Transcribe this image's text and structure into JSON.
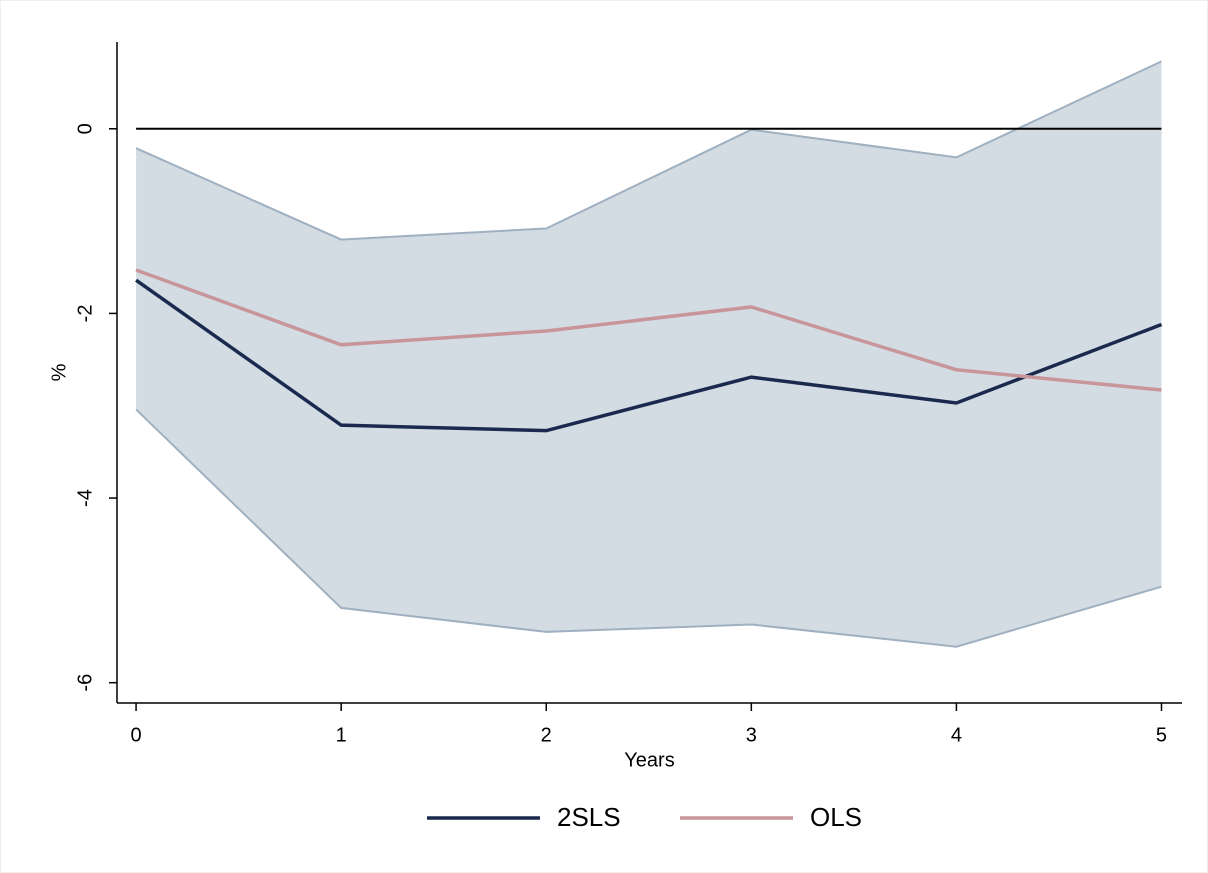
{
  "chart_data": {
    "type": "line",
    "x_label": "Years",
    "y_label": "%",
    "x": [
      0,
      1,
      2,
      3,
      4,
      5
    ],
    "series": [
      {
        "name": "2SLS",
        "color": "#1a2a4f",
        "values": [
          -1.64,
          -3.21,
          -3.27,
          -2.69,
          -2.97,
          -2.12
        ]
      },
      {
        "name": "OLS",
        "color": "#c8969a",
        "values": [
          -1.53,
          -2.34,
          -2.19,
          -1.93,
          -2.61,
          -2.83
        ]
      }
    ],
    "band": {
      "color": "#d3dbe3",
      "edge_color": "#9fb0c0",
      "upper": [
        -0.21,
        -1.2,
        -1.08,
        -0.01,
        -0.31,
        0.73
      ],
      "lower": [
        -3.04,
        -5.19,
        -5.45,
        -5.37,
        -5.61,
        -4.96
      ]
    },
    "hline": 0,
    "xlim": [
      -0.093,
      5.1
    ],
    "ylim": [
      -6.22,
      0.94
    ],
    "xticks": [
      0,
      1,
      2,
      3,
      4,
      5
    ],
    "yticks": [
      0,
      -2,
      -4,
      -6
    ],
    "legend": "bottom"
  }
}
